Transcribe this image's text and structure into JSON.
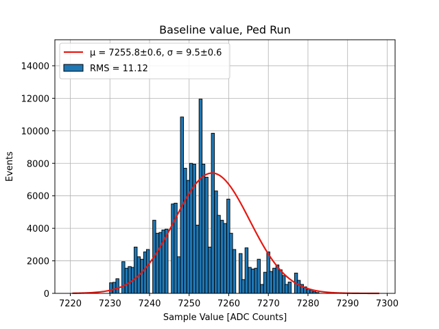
{
  "chart_data": {
    "type": "bar",
    "title": "Baseline value, Ped Run",
    "xlabel": "Sample Value [ADC Counts]",
    "ylabel": "Events",
    "xlim": [
      7216.1,
      7302.0
    ],
    "ylim": [
      0,
      15600
    ],
    "grid": true,
    "legend_position": "top-left",
    "x_ticks": [
      7220,
      7230,
      7240,
      7250,
      7260,
      7270,
      7280,
      7290,
      7300
    ],
    "y_ticks": [
      0,
      2000,
      4000,
      6000,
      8000,
      10000,
      12000,
      14000
    ],
    "bin_width": 0.78,
    "bins": {
      "x_start": [
        7229.9,
        7230.7,
        7231.5,
        7232.2,
        7233.0,
        7233.8,
        7234.6,
        7235.4,
        7236.1,
        7236.9,
        7237.7,
        7238.5,
        7239.2,
        7240.0,
        7240.8,
        7241.6,
        7242.4,
        7243.1,
        7243.9,
        7244.7,
        7245.5,
        7246.2,
        7247.0,
        7247.8,
        7248.6,
        7249.4,
        7250.1,
        7250.9,
        7251.7,
        7252.5,
        7253.2,
        7254.0,
        7254.8,
        7255.6,
        7256.4,
        7257.1,
        7257.9,
        7258.7,
        7259.5,
        7260.2,
        7261.0,
        7261.8,
        7262.6,
        7263.3,
        7264.1,
        7264.9,
        7265.7,
        7266.5,
        7267.2,
        7268.0,
        7268.8,
        7269.6,
        7270.3,
        7271.1,
        7271.9,
        7272.7,
        7273.5,
        7274.2,
        7275.0,
        7275.8,
        7276.6,
        7277.3,
        7278.1,
        7278.9,
        7279.7,
        7280.5,
        7281.2,
        7282.0,
        7282.8,
        7283.6,
        7284.3,
        7285.1,
        7285.9,
        7286.7,
        7287.5
      ],
      "values": [
        650,
        680,
        900,
        0,
        1950,
        1550,
        1650,
        1600,
        2850,
        2250,
        2100,
        2550,
        2700,
        0,
        4500,
        3700,
        3750,
        3900,
        3950,
        0,
        5500,
        5550,
        2250,
        10850,
        7700,
        6950,
        8000,
        7950,
        4200,
        11950,
        7950,
        7150,
        2850,
        9850,
        6300,
        4800,
        4500,
        4300,
        5800,
        3700,
        2700,
        0,
        2450,
        850,
        2800,
        1600,
        1500,
        1550,
        2100,
        550,
        1300,
        2550,
        1350,
        1550,
        1750,
        1450,
        1100,
        550,
        700,
        0,
        1250,
        800,
        550,
        400,
        250,
        200,
        100,
        50,
        0,
        0,
        0,
        0,
        0,
        0,
        0
      ]
    },
    "fit": {
      "mu": 7255.8,
      "sigma": 9.5,
      "amplitude": 7400,
      "x_range": [
        7220.5,
        7298.0
      ],
      "color": "#e8170f"
    },
    "bar_color": "#1f77b4",
    "legend": [
      {
        "kind": "line",
        "label": "μ = 7255.8±0.6, σ = 9.5±0.6"
      },
      {
        "kind": "bar",
        "label": "RMS = 11.12"
      }
    ]
  }
}
